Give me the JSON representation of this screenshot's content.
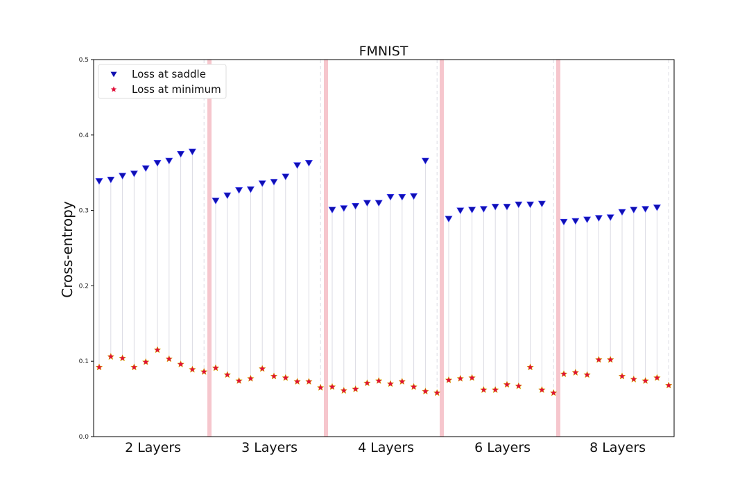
{
  "chart_data": {
    "type": "scatter",
    "title": "FMNIST",
    "ylabel": "Cross-entropy",
    "xlabel": "",
    "ylim": [
      0,
      0.5
    ],
    "yticks": [
      "0.0",
      "0.1",
      "0.2",
      "0.3",
      "0.4",
      "0.5"
    ],
    "grid": false,
    "legend_position": "top-left",
    "groups": [
      "2 Layers",
      "3 Layers",
      "4 Layers",
      "6 Layers",
      "8 Layers"
    ],
    "series": [
      {
        "name": "Loss at saddle",
        "marker": "triangle-down",
        "color": "#1010b0",
        "values": [
          [
            0.339,
            0.341,
            0.346,
            0.349,
            0.356,
            0.363,
            0.366,
            0.375,
            0.378
          ],
          [
            0.313,
            0.32,
            0.327,
            0.328,
            0.336,
            0.338,
            0.345,
            0.36,
            0.363
          ],
          [
            0.301,
            0.303,
            0.306,
            0.31,
            0.31,
            0.318,
            0.318,
            0.319,
            0.366
          ],
          [
            0.289,
            0.3,
            0.301,
            0.302,
            0.305,
            0.305,
            0.308,
            0.308,
            0.309
          ],
          [
            0.285,
            0.286,
            0.288,
            0.29,
            0.291,
            0.298,
            0.301,
            0.302,
            0.304
          ]
        ]
      },
      {
        "name": "Loss at minimum",
        "marker": "star",
        "color": "#e0103a",
        "values": [
          [
            0.092,
            0.106,
            0.104,
            0.092,
            0.099,
            0.115,
            0.103,
            0.096,
            0.089,
            0.086
          ],
          [
            0.091,
            0.082,
            0.074,
            0.077,
            0.09,
            0.08,
            0.078,
            0.073,
            0.073,
            0.065
          ],
          [
            0.066,
            0.061,
            0.063,
            0.071,
            0.074,
            0.07,
            0.073,
            0.066,
            0.06,
            0.058
          ],
          [
            0.075,
            0.077,
            0.078,
            0.062,
            0.062,
            0.069,
            0.067,
            0.092,
            0.062,
            0.058
          ],
          [
            0.083,
            0.085,
            0.082,
            0.102,
            0.102,
            0.08,
            0.076,
            0.074,
            0.078,
            0.068
          ]
        ]
      }
    ]
  },
  "colors": {
    "saddle": "#1010b0",
    "minimum": "#e0103a",
    "separator": "#f4b8c0",
    "connector": "#d8d8e0"
  }
}
